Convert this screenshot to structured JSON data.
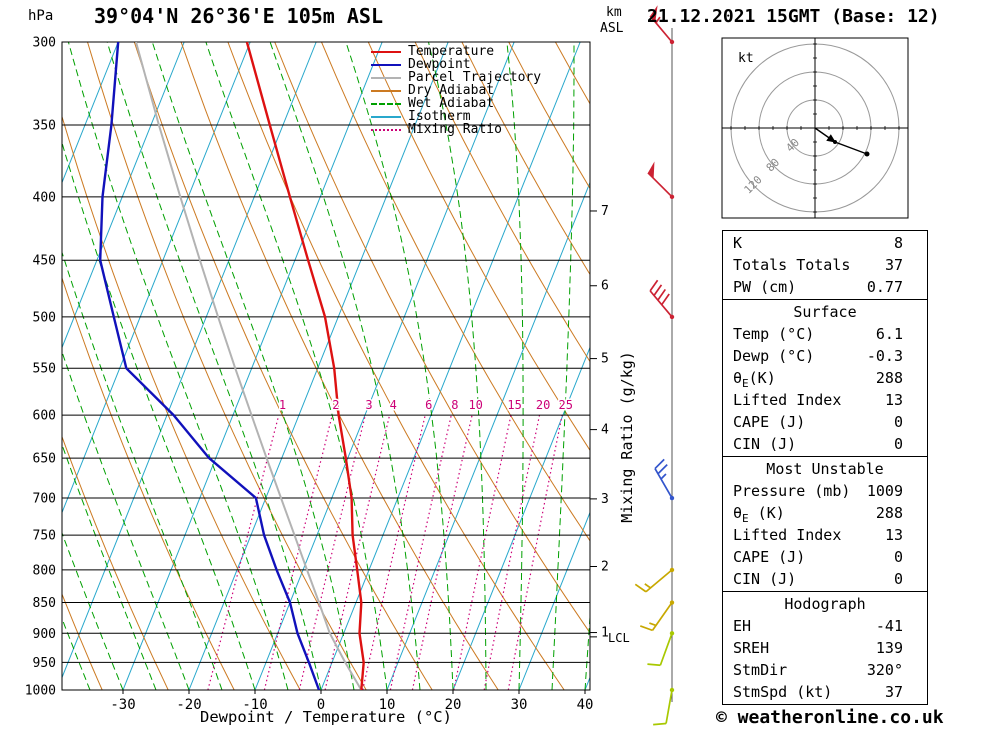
{
  "header": {
    "left_unit": "hPa",
    "title": "39°04'N 26°36'E 105m ASL",
    "right_unit_top": "km",
    "right_unit_bottom": "ASL",
    "datetime": "21.12.2021 15GMT (Base: 12)"
  },
  "legend": {
    "items": [
      {
        "label": "Temperature",
        "color": "#dd1111",
        "style": "solid"
      },
      {
        "label": "Dewpoint",
        "color": "#1111bb",
        "style": "solid"
      },
      {
        "label": "Parcel Trajectory",
        "color": "#b3b3b3",
        "style": "solid"
      },
      {
        "label": "Dry Adiabat",
        "color": "#cc7a22",
        "style": "solid"
      },
      {
        "label": "Wet Adiabat",
        "color": "#00a000",
        "style": "dashed"
      },
      {
        "label": "Isotherm",
        "color": "#29a8cc",
        "style": "solid"
      },
      {
        "label": "Mixing Ratio",
        "color": "#cc0077",
        "style": "dotted"
      }
    ]
  },
  "axes": {
    "pressure_unit": "hPa",
    "pressure_ticks": [
      300,
      350,
      400,
      450,
      500,
      550,
      600,
      650,
      700,
      750,
      800,
      850,
      900,
      950,
      1000
    ],
    "temp_ticks": [
      -30,
      -20,
      -10,
      0,
      10,
      20,
      30,
      40
    ],
    "xlabel": "Dewpoint / Temperature (°C)",
    "right_label": "Mixing Ratio (g/kg)",
    "km_ticks": [
      7,
      6,
      5,
      4,
      3,
      2,
      1
    ],
    "lcl_label": "LCL",
    "mixing_ratio_values": [
      1,
      2,
      3,
      4,
      6,
      8,
      10,
      15,
      20,
      25
    ]
  },
  "chart_data": {
    "type": "line",
    "subtype": "skewt-logp-sounding",
    "title": "39°04'N 26°36'E 105m ASL",
    "x_axis": {
      "label": "Dewpoint / Temperature (°C)",
      "tick_range": [
        -30,
        40
      ],
      "skewed": true
    },
    "y_axis": {
      "label": "hPa",
      "scale": "log",
      "range": [
        1000,
        300
      ]
    },
    "pressure_hpa": [
      1000,
      950,
      900,
      850,
      800,
      750,
      700,
      650,
      600,
      550,
      500,
      450,
      400,
      350,
      300
    ],
    "series": [
      {
        "name": "Temperature",
        "color": "#dd1111",
        "values_c": [
          6.1,
          4.8,
          2.4,
          0.8,
          -1.8,
          -4.6,
          -7.0,
          -10.3,
          -14.0,
          -17.5,
          -22.0,
          -28.0,
          -34.6,
          -42.0,
          -50.5
        ]
      },
      {
        "name": "Dewpoint",
        "color": "#1111bb",
        "values_c": [
          -0.3,
          -3.5,
          -7.0,
          -10.0,
          -14.0,
          -18.0,
          -21.5,
          -31.0,
          -39.0,
          -49.0,
          -54.0,
          -59.5,
          -63.0,
          -66.0,
          -70.0
        ]
      },
      {
        "name": "Parcel Trajectory",
        "color": "#b3b3b3",
        "values_c": [
          6.1,
          2.0,
          -2.1,
          -5.6,
          -9.4,
          -13.4,
          -17.7,
          -22.3,
          -27.2,
          -32.5,
          -38.2,
          -44.4,
          -51.2,
          -58.8,
          -67.3
        ]
      }
    ]
  },
  "winds": [
    {
      "p": 300,
      "dir": 320,
      "spd": 55,
      "color": "#cc2233"
    },
    {
      "p": 400,
      "dir": 315,
      "spd": 50,
      "color": "#cc2233"
    },
    {
      "p": 500,
      "dir": 320,
      "spd": 40,
      "color": "#cc2233"
    },
    {
      "p": 700,
      "dir": 330,
      "spd": 25,
      "color": "#3355cc"
    },
    {
      "p": 800,
      "dir": 230,
      "spd": 15,
      "color": "#c8a800"
    },
    {
      "p": 850,
      "dir": 215,
      "spd": 15,
      "color": "#c8a800"
    },
    {
      "p": 900,
      "dir": 200,
      "spd": 10,
      "color": "#a8c800"
    },
    {
      "p": 1000,
      "dir": 190,
      "spd": 10,
      "color": "#a8c800"
    }
  ],
  "hodograph": {
    "unit": "kt",
    "ring_step_kt": 40,
    "ring_labels": [
      "120",
      "80",
      "40"
    ],
    "trace": [
      [
        0,
        0
      ],
      [
        20,
        14
      ],
      [
        52,
        26
      ]
    ]
  },
  "panels": [
    {
      "rows": [
        {
          "label": "K",
          "value": "8"
        },
        {
          "label": "Totals Totals",
          "value": "37"
        },
        {
          "label": "PW (cm)",
          "value": "0.77"
        }
      ]
    },
    {
      "title": "Surface",
      "rows": [
        {
          "label": "Temp (°C)",
          "value": "6.1"
        },
        {
          "label": "Dewp (°C)",
          "value": "-0.3"
        },
        {
          "label": "θ",
          "sub": "E",
          "label_suffix": "(K)",
          "value": "288"
        },
        {
          "label": "Lifted Index",
          "value": "13"
        },
        {
          "label": "CAPE (J)",
          "value": "0"
        },
        {
          "label": "CIN (J)",
          "value": "0"
        }
      ]
    },
    {
      "title": "Most Unstable",
      "rows": [
        {
          "label": "Pressure (mb)",
          "value": "1009"
        },
        {
          "label": "θ",
          "sub": "E",
          "label_suffix": " (K)",
          "value": "288"
        },
        {
          "label": "Lifted Index",
          "value": "13"
        },
        {
          "label": "CAPE (J)",
          "value": "0"
        },
        {
          "label": "CIN (J)",
          "value": "0"
        }
      ]
    },
    {
      "title": "Hodograph",
      "rows": [
        {
          "label": "EH",
          "value": "-41"
        },
        {
          "label": "SREH",
          "value": "139"
        },
        {
          "label": "StmDir",
          "value": "320°"
        },
        {
          "label": "StmSpd (kt)",
          "value": "37"
        }
      ]
    }
  ],
  "footer": {
    "copyright": "© weatheronline.co.uk"
  }
}
